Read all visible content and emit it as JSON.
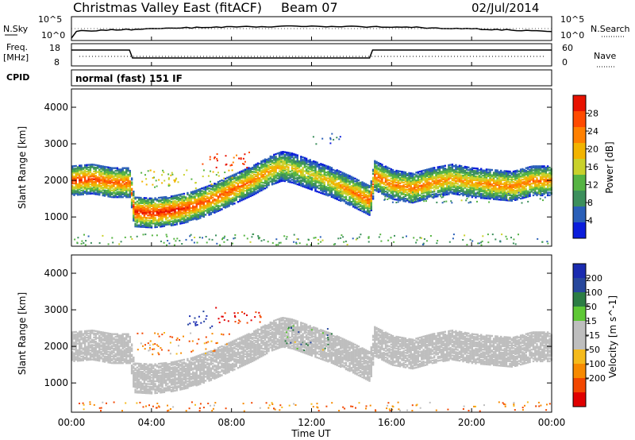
{
  "header": {
    "title": "Christmas Valley East (fitACF)",
    "beam": "Beam 07",
    "date": "02/Jul/2014"
  },
  "top_panels": {
    "nsky_label": "N.Sky",
    "nsky_ticks": [
      "10^5",
      "10^0"
    ],
    "nsearch_label": "N.Search",
    "nsearch_ticks": [
      "10^5",
      "10^0"
    ],
    "freq_label": "Freq.",
    "freq_unit": "[MHz]",
    "freq_ticks": [
      "18",
      "8"
    ],
    "nave_label": "Nave",
    "nave_ticks": [
      "60",
      "0"
    ],
    "cpid_label": "CPID",
    "cpid_value": "normal (fast) 151 IF"
  },
  "x_axis": {
    "label": "Time UT",
    "ticks": [
      "00:00",
      "04:00",
      "08:00",
      "12:00",
      "16:00",
      "20:00",
      "00:00"
    ]
  },
  "colors": {
    "power": [
      "#0b1ddb",
      "#2a5fb8",
      "#3c8f5c",
      "#56b443",
      "#c9d12b",
      "#f2b400",
      "#ff8000",
      "#ff4a00",
      "#e81200"
    ],
    "velocity": [
      "#1a2bb0",
      "#27479c",
      "#2c7d44",
      "#5ec835",
      "#bebebe",
      "#bebebe",
      "#f5ba1b",
      "#f78a00",
      "#f24700",
      "#e00000"
    ]
  },
  "chart_data": [
    {
      "type": "heatmap",
      "xlabel": "",
      "ylabel": "Slant Range [km]",
      "xlim_hours": [
        0,
        24
      ],
      "ylim": [
        200,
        4500
      ],
      "yticks": [
        "4000",
        "3000",
        "2000",
        "1000"
      ],
      "colorbar_label": "Power [dB]",
      "colorbar_ticks": [
        "28",
        "24",
        "20",
        "16",
        "12",
        "8",
        "4"
      ],
      "colorbar_range": [
        0,
        32
      ],
      "main_echo_range_vs_time": {
        "time_h": [
          0,
          1,
          2,
          2.9,
          3.1,
          4,
          5,
          6,
          7,
          8,
          9,
          10,
          10.5,
          11,
          12,
          13,
          14,
          14.9,
          15.1,
          16,
          17,
          18,
          19,
          20,
          21,
          22,
          23,
          24
        ],
        "range_km": [
          2000,
          2050,
          1950,
          1950,
          1150,
          1120,
          1180,
          1300,
          1500,
          1750,
          2000,
          2300,
          2400,
          2350,
          2150,
          1950,
          1700,
          1450,
          2150,
          1900,
          1800,
          1950,
          2050,
          1950,
          1900,
          1850,
          2000,
          2000
        ],
        "peak_power_db": [
          28,
          28,
          26,
          26,
          30,
          30,
          30,
          28,
          26,
          26,
          24,
          22,
          20,
          18,
          18,
          20,
          24,
          26,
          26,
          24,
          24,
          24,
          22,
          22,
          24,
          24,
          24,
          24
        ]
      },
      "secondary_echoes": [
        {
          "t0": 6.5,
          "t1": 9.0,
          "r0": 2350,
          "r1": 2800,
          "power_db": 28
        },
        {
          "t0": 3.3,
          "t1": 8.0,
          "r0": 1800,
          "r1": 2300,
          "power_db": 16
        },
        {
          "t0": 12.0,
          "t1": 13.5,
          "r0": 3000,
          "r1": 3300,
          "power_db": 6
        },
        {
          "t0": 15.5,
          "t1": 24.0,
          "r0": 1400,
          "r1": 1700,
          "power_db": 10
        },
        {
          "t0": 0.0,
          "t1": 24.0,
          "r0": 250,
          "r1": 550,
          "power_db": 10
        }
      ]
    },
    {
      "type": "heatmap",
      "xlabel": "Time UT",
      "ylabel": "Slant Range [km]",
      "xlim_hours": [
        0,
        24
      ],
      "ylim": [
        200,
        4500
      ],
      "yticks": [
        "4000",
        "3000",
        "2000",
        "1000"
      ],
      "colorbar_label": "Velocity [m s^-1]",
      "colorbar_ticks": [
        "200",
        "100",
        "50",
        "15",
        "-15",
        "-50",
        "-100",
        "-200"
      ],
      "colorbar_range": [
        -250,
        250
      ],
      "dominant_class": "ground scatter (grey, |v| < 15)",
      "ionospheric_echoes": [
        {
          "t0": 7.0,
          "t1": 9.5,
          "r0": 2600,
          "r1": 3100,
          "velocity": -150
        },
        {
          "t0": 5.5,
          "t1": 7.0,
          "r0": 2500,
          "r1": 3000,
          "velocity": 180
        },
        {
          "t0": 3.2,
          "t1": 8.0,
          "r0": 1800,
          "r1": 2400,
          "velocity": -60
        },
        {
          "t0": 10.5,
          "t1": 13.0,
          "r0": 1900,
          "r1": 2600,
          "velocity": 40
        },
        {
          "t0": 0.0,
          "t1": 24.0,
          "r0": 250,
          "r1": 500,
          "velocity": -60
        }
      ]
    }
  ]
}
